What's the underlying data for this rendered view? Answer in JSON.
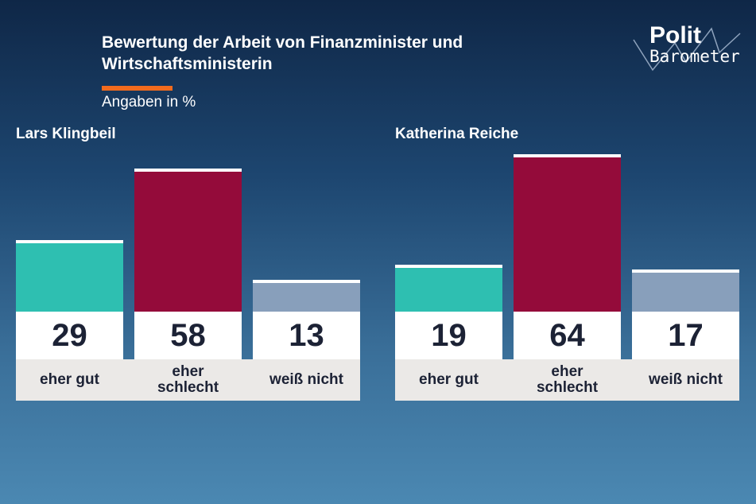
{
  "title": "Bewertung der Arbeit von Finanzminister und Wirtschaftsministerin",
  "subtitle": "Angaben in %",
  "logo": {
    "line1": "Polit",
    "line2": "Barometer"
  },
  "colors": {
    "eher gut": "#2ebfb1",
    "eher schlecht": "#940b3a",
    "weiß nicht": "#889fbb",
    "accent": "#f26b1d"
  },
  "chart_data": [
    {
      "type": "bar",
      "title": "Lars Klingbeil",
      "categories": [
        "eher gut",
        "eher schlecht",
        "weiß nicht"
      ],
      "values": [
        29,
        58,
        13
      ],
      "ylim": [
        0,
        64
      ]
    },
    {
      "type": "bar",
      "title": "Katherina Reiche",
      "categories": [
        "eher gut",
        "eher schlecht",
        "weiß nicht"
      ],
      "values": [
        19,
        64,
        17
      ],
      "ylim": [
        0,
        64
      ]
    }
  ]
}
